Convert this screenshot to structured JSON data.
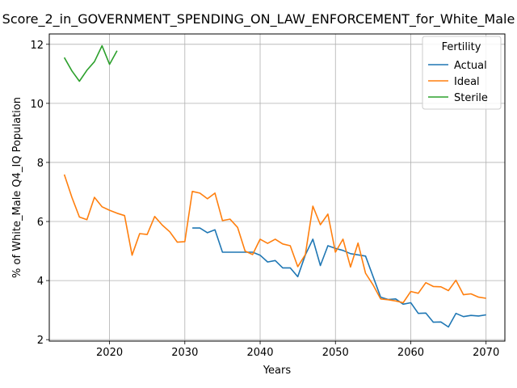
{
  "chart_data": {
    "type": "line",
    "title": "Score_2_in_GOVERNMENT_SPENDING_ON_LAW_ENFORCEMENT_for_White_Male",
    "xlabel": "Years",
    "ylabel": "% of White_Male Q4_IQ Population",
    "xlim": [
      2012,
      2072.5
    ],
    "ylim": [
      1.95,
      12.35
    ],
    "xticks": [
      2020,
      2030,
      2040,
      2050,
      2060,
      2070
    ],
    "yticks": [
      2,
      4,
      6,
      8,
      10,
      12
    ],
    "grid": true,
    "legend": {
      "title": "Fertility",
      "placement": "top-right"
    },
    "series": [
      {
        "name": "Actual",
        "color": "#1f77b4",
        "x": [
          2031,
          2032,
          2033,
          2034,
          2035,
          2036,
          2037,
          2038,
          2039,
          2040,
          2041,
          2042,
          2043,
          2044,
          2045,
          2046,
          2047,
          2048,
          2049,
          2050,
          2051,
          2052,
          2053,
          2054,
          2055,
          2056,
          2057,
          2058,
          2059,
          2060,
          2061,
          2062,
          2063,
          2064,
          2065,
          2066,
          2067,
          2068,
          2069,
          2070
        ],
        "y": [
          5.78,
          5.78,
          5.62,
          5.72,
          4.96,
          4.96,
          4.96,
          4.96,
          4.96,
          4.86,
          4.63,
          4.68,
          4.43,
          4.43,
          4.13,
          4.87,
          5.4,
          4.51,
          5.18,
          5.09,
          5.02,
          4.91,
          4.87,
          4.83,
          4.13,
          3.44,
          3.36,
          3.38,
          3.2,
          3.25,
          2.89,
          2.9,
          2.59,
          2.6,
          2.43,
          2.89,
          2.78,
          2.82,
          2.8,
          2.84
        ]
      },
      {
        "name": "Ideal",
        "color": "#ff7f0e",
        "x": [
          2014,
          2015,
          2016,
          2017,
          2018,
          2019,
          2020,
          2021,
          2022,
          2023,
          2024,
          2025,
          2026,
          2027,
          2028,
          2029,
          2030,
          2031,
          2032,
          2033,
          2034,
          2035,
          2036,
          2037,
          2038,
          2039,
          2040,
          2041,
          2042,
          2043,
          2044,
          2045,
          2046,
          2047,
          2048,
          2049,
          2050,
          2051,
          2052,
          2053,
          2054,
          2055,
          2056,
          2057,
          2058,
          2059,
          2060,
          2061,
          2062,
          2063,
          2064,
          2065,
          2066,
          2067,
          2068,
          2069,
          2070
        ],
        "y": [
          7.59,
          6.82,
          6.15,
          6.06,
          6.82,
          6.5,
          6.38,
          6.28,
          6.2,
          4.86,
          5.59,
          5.56,
          6.17,
          5.88,
          5.65,
          5.3,
          5.32,
          7.02,
          6.96,
          6.77,
          6.96,
          6.03,
          6.08,
          5.8,
          5.0,
          4.88,
          5.4,
          5.26,
          5.4,
          5.24,
          5.18,
          4.47,
          4.88,
          6.52,
          5.89,
          6.25,
          4.96,
          5.4,
          4.46,
          5.27,
          4.25,
          3.85,
          3.38,
          3.35,
          3.31,
          3.25,
          3.63,
          3.57,
          3.93,
          3.8,
          3.79,
          3.66,
          4.01,
          3.52,
          3.55,
          3.44,
          3.4
        ]
      },
      {
        "name": "Sterile",
        "color": "#2ca02c",
        "x": [
          2014,
          2015,
          2016,
          2017,
          2018,
          2019,
          2020,
          2021
        ],
        "y": [
          11.55,
          11.1,
          10.75,
          11.12,
          11.41,
          11.95,
          11.32,
          11.78
        ]
      }
    ]
  }
}
